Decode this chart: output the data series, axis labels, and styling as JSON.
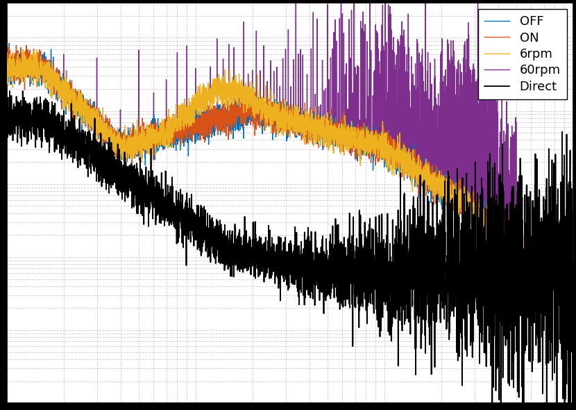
{
  "title": "",
  "xlabel": "",
  "ylabel": "",
  "background_color": "#ffffff",
  "outer_background": "#000000",
  "grid_color": "#cccccc",
  "legend_entries": [
    "OFF",
    "ON",
    "6rpm",
    "60rpm",
    "Direct"
  ],
  "line_colors": [
    "#0072bd",
    "#d95319",
    "#edb120",
    "#7e2f8e",
    "#000000"
  ],
  "line_widths": [
    1.0,
    1.0,
    1.0,
    1.0,
    1.3
  ],
  "figsize": [
    8.3,
    5.9
  ],
  "dpi": 100,
  "ylim": [
    1e-11,
    3e-06
  ],
  "xlim": [
    1,
    1000
  ]
}
